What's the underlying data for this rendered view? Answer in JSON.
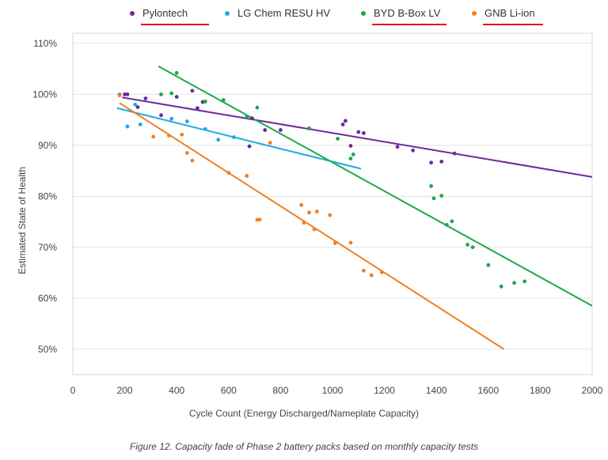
{
  "caption": "Figure 12. Capacity fade of Phase 2 battery packs based on monthly capacity tests",
  "chart_data": {
    "type": "scatter",
    "xlabel": "Cycle Count (Energy Discharged/Nameplate Capacity)",
    "ylabel": "Estimated State of Health",
    "xlim": [
      0,
      2000
    ],
    "ylim": [
      45,
      112
    ],
    "x_ticks": [
      0,
      200,
      400,
      600,
      800,
      1000,
      1200,
      1400,
      1600,
      1800,
      2000
    ],
    "x_tick_labels": [
      "0",
      "200",
      "400",
      "600",
      "800",
      "1000",
      "1200",
      "1400",
      "1600",
      "1800",
      "2000"
    ],
    "y_ticks": [
      50,
      60,
      70,
      80,
      90,
      100,
      110
    ],
    "y_tick_labels": [
      "50%",
      "60%",
      "70%",
      "80%",
      "90%",
      "100%",
      "110%"
    ],
    "grid": "horizontal",
    "legend_position": "top",
    "series": [
      {
        "name": "Pylontech",
        "color": "#6a2b9c",
        "underlined": true,
        "points": [
          [
            200,
            100
          ],
          [
            210,
            100
          ],
          [
            250,
            97.5
          ],
          [
            280,
            99.2
          ],
          [
            340,
            95.9
          ],
          [
            400,
            99.5
          ],
          [
            460,
            100.7
          ],
          [
            480,
            97.3
          ],
          [
            500,
            98.5
          ],
          [
            510,
            98.6
          ],
          [
            680,
            89.8
          ],
          [
            690,
            95.3
          ],
          [
            740,
            93.0
          ],
          [
            800,
            93.0
          ],
          [
            910,
            93.3
          ],
          [
            1040,
            94.1
          ],
          [
            1050,
            94.8
          ],
          [
            1070,
            89.9
          ],
          [
            1100,
            92.6
          ],
          [
            1120,
            92.4
          ],
          [
            1250,
            89.7
          ],
          [
            1310,
            89.0
          ],
          [
            1380,
            86.6
          ],
          [
            1420,
            86.8
          ],
          [
            1470,
            88.4
          ]
        ],
        "trend": [
          [
            190,
            99.4
          ],
          [
            2000,
            83.8
          ]
        ]
      },
      {
        "name": "LG Chem RESU HV",
        "color": "#1ea9e6",
        "underlined": false,
        "points": [
          [
            180,
            100
          ],
          [
            210,
            93.7
          ],
          [
            240,
            98.0
          ],
          [
            260,
            94.1
          ],
          [
            380,
            95.2
          ],
          [
            440,
            94.7
          ],
          [
            510,
            93.2
          ],
          [
            560,
            91.1
          ],
          [
            620,
            91.6
          ]
        ],
        "trend": [
          [
            170,
            97.3
          ],
          [
            1110,
            85.4
          ]
        ]
      },
      {
        "name": "BYD B-Box LV",
        "color": "#1ea84a",
        "underlined": true,
        "points": [
          [
            340,
            100
          ],
          [
            380,
            100.2
          ],
          [
            400,
            104.2
          ],
          [
            510,
            98.6
          ],
          [
            580,
            98.9
          ],
          [
            670,
            95.6
          ],
          [
            710,
            97.4
          ],
          [
            910,
            93.3
          ],
          [
            1020,
            91.3
          ],
          [
            1070,
            87.4
          ],
          [
            1080,
            88.2
          ],
          [
            1380,
            82.0
          ],
          [
            1390,
            79.6
          ],
          [
            1420,
            80.1
          ],
          [
            1440,
            74.4
          ],
          [
            1460,
            75.1
          ],
          [
            1520,
            70.5
          ],
          [
            1540,
            70.0
          ],
          [
            1600,
            66.5
          ],
          [
            1650,
            62.3
          ],
          [
            1700,
            63.0
          ],
          [
            1740,
            63.3
          ]
        ],
        "trend": [
          [
            330,
            105.5
          ],
          [
            2000,
            58.5
          ]
        ]
      },
      {
        "name": "GNB Li-ion",
        "color": "#f07f23",
        "underlined": true,
        "points": [
          [
            180,
            99.8
          ],
          [
            310,
            91.7
          ],
          [
            370,
            91.9
          ],
          [
            420,
            92.1
          ],
          [
            440,
            88.5
          ],
          [
            460,
            87.0
          ],
          [
            600,
            84.6
          ],
          [
            670,
            84.0
          ],
          [
            710,
            75.4
          ],
          [
            720,
            75.4
          ],
          [
            760,
            90.5
          ],
          [
            880,
            78.3
          ],
          [
            890,
            74.8
          ],
          [
            910,
            76.8
          ],
          [
            930,
            73.5
          ],
          [
            940,
            77.0
          ],
          [
            990,
            76.3
          ],
          [
            1010,
            70.8
          ],
          [
            1070,
            70.9
          ],
          [
            1120,
            65.4
          ],
          [
            1150,
            64.5
          ],
          [
            1190,
            65.1
          ]
        ],
        "trend": [
          [
            180,
            98.3
          ],
          [
            1660,
            50.0
          ]
        ]
      }
    ]
  }
}
